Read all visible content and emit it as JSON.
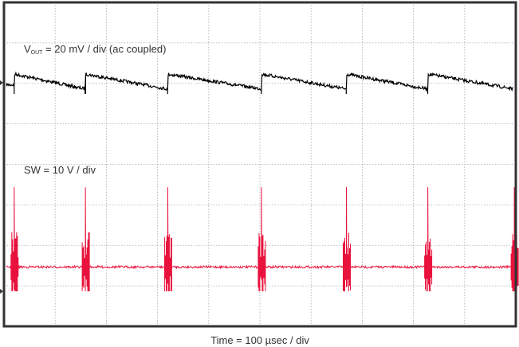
{
  "chart_data": {
    "type": "line",
    "title": "",
    "xlabel": "Time = 100 µsec / div",
    "divisions": {
      "horizontal": 10,
      "vertical": 8
    },
    "grid": true,
    "time_per_div_us": 100,
    "xlim_us": [
      0,
      1000
    ],
    "series": [
      {
        "name": "VOUT = 20 mV / div (ac coupled)",
        "label_main": "V",
        "label_sub": "OUT",
        "label_rest": " = 20 mV / div (ac coupled)",
        "units": "mV",
        "scale_per_div": 20,
        "color": "#000000",
        "step_times_us": [
          20,
          159,
          320,
          503,
          669,
          828,
          997
        ],
        "level_after_step_mV": 4.3,
        "level_before_step_mV": -3.1,
        "initial_level_mV": -1.0
      },
      {
        "name": "SW = 10 V / div",
        "units": "V",
        "scale_per_div": 10,
        "color": "#e8123c",
        "spike_times_us": [
          20,
          159,
          320,
          503,
          669,
          828,
          997
        ],
        "baseline_V": 6,
        "spike_peak_V": 25.7,
        "spike_min_V": 0
      }
    ]
  }
}
